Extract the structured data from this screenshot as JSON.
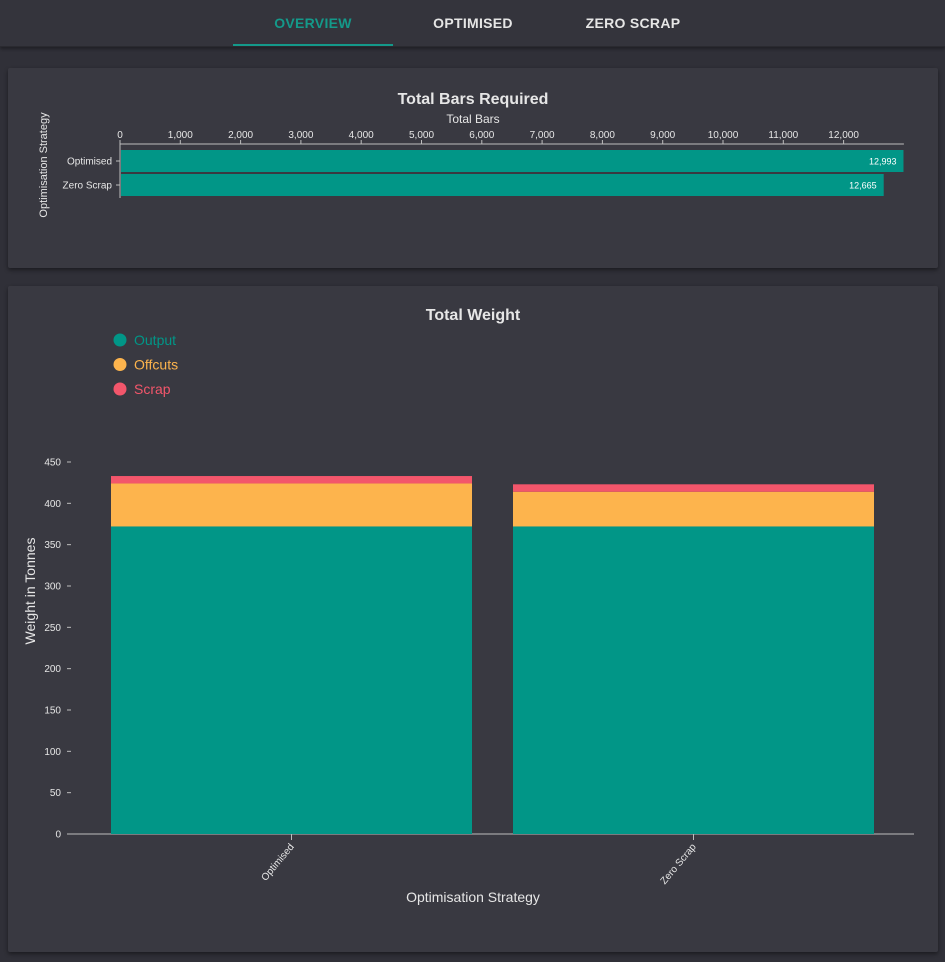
{
  "tabs": [
    {
      "label": "OVERVIEW",
      "active": true
    },
    {
      "label": "OPTIMISED",
      "active": false
    },
    {
      "label": "ZERO SCRAP",
      "active": false
    }
  ],
  "colors": {
    "accent": "#14998a",
    "output": "#019687",
    "offcuts": "#fdb44d",
    "scrap": "#f3566b",
    "text": "#e6e6e6"
  },
  "chart_data": [
    {
      "type": "bar",
      "orientation": "horizontal",
      "title": "Total Bars Required",
      "xlabel": "Total Bars",
      "ylabel": "Optimisation Strategy",
      "categories": [
        "Optimised",
        "Zero Scrap"
      ],
      "values": [
        12993,
        12665
      ],
      "value_labels": [
        "12,993",
        "12,665"
      ],
      "xlim": [
        0,
        13000
      ],
      "xticks": [
        0,
        1000,
        2000,
        3000,
        4000,
        5000,
        6000,
        7000,
        8000,
        9000,
        10000,
        11000,
        12000
      ],
      "xtick_labels": [
        "0",
        "1,000",
        "2,000",
        "3,000",
        "4,000",
        "5,000",
        "6,000",
        "7,000",
        "8,000",
        "9,000",
        "10,000",
        "11,000",
        "12,000"
      ],
      "grid": false
    },
    {
      "type": "bar",
      "stacked": true,
      "title": "Total Weight",
      "xlabel": "Optimisation Strategy",
      "ylabel": "Weight in Tonnes",
      "categories": [
        "Optimised",
        "Zero Scrap"
      ],
      "series": [
        {
          "name": "Output",
          "values": [
            372,
            372
          ],
          "color": "#019687"
        },
        {
          "name": "Offcuts",
          "values": [
            52,
            42
          ],
          "color": "#fdb44d"
        },
        {
          "name": "Scrap",
          "values": [
            9,
            9
          ],
          "color": "#f3566b"
        }
      ],
      "ylim": [
        0,
        450
      ],
      "yticks": [
        0,
        50,
        100,
        150,
        200,
        250,
        300,
        350,
        400,
        450
      ],
      "legend_position": "top-left",
      "grid": false
    }
  ]
}
